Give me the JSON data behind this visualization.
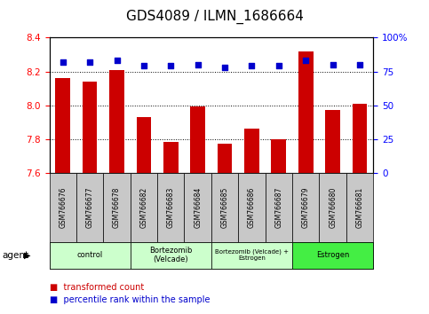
{
  "title": "GDS4089 / ILMN_1686664",
  "samples": [
    "GSM766676",
    "GSM766677",
    "GSM766678",
    "GSM766682",
    "GSM766683",
    "GSM766684",
    "GSM766685",
    "GSM766686",
    "GSM766687",
    "GSM766679",
    "GSM766680",
    "GSM766681"
  ],
  "bar_values": [
    8.16,
    8.14,
    8.21,
    7.93,
    7.78,
    7.99,
    7.77,
    7.86,
    7.8,
    8.32,
    7.97,
    8.01
  ],
  "percentile_values": [
    82,
    82,
    83,
    79,
    79,
    80,
    78,
    79,
    79,
    83,
    80,
    80
  ],
  "ylim": [
    7.6,
    8.4
  ],
  "ylim_right": [
    0,
    100
  ],
  "yticks_left": [
    7.6,
    7.8,
    8.0,
    8.2,
    8.4
  ],
  "yticks_right": [
    0,
    25,
    50,
    75,
    100
  ],
  "bar_color": "#cc0000",
  "dot_color": "#0000cc",
  "bar_width": 0.55,
  "groups": [
    {
      "label": "control",
      "start": 0,
      "end": 3,
      "color": "#ccffcc"
    },
    {
      "label": "Bortezomib\n(Velcade)",
      "start": 3,
      "end": 6,
      "color": "#ccffcc"
    },
    {
      "label": "Bortezomib (Velcade) +\nEstrogen",
      "start": 6,
      "end": 9,
      "color": "#ccffcc"
    },
    {
      "label": "Estrogen",
      "start": 9,
      "end": 12,
      "color": "#44ee44"
    }
  ],
  "legend_labels": [
    "transformed count",
    "percentile rank within the sample"
  ],
  "legend_colors": [
    "#cc0000",
    "#0000cc"
  ],
  "agent_label": "agent",
  "sample_box_color": "#c8c8c8",
  "grid_color": "#000000",
  "background_color": "#ffffff",
  "title_fontsize": 11,
  "tick_fontsize": 7.5,
  "dot_size": 25
}
